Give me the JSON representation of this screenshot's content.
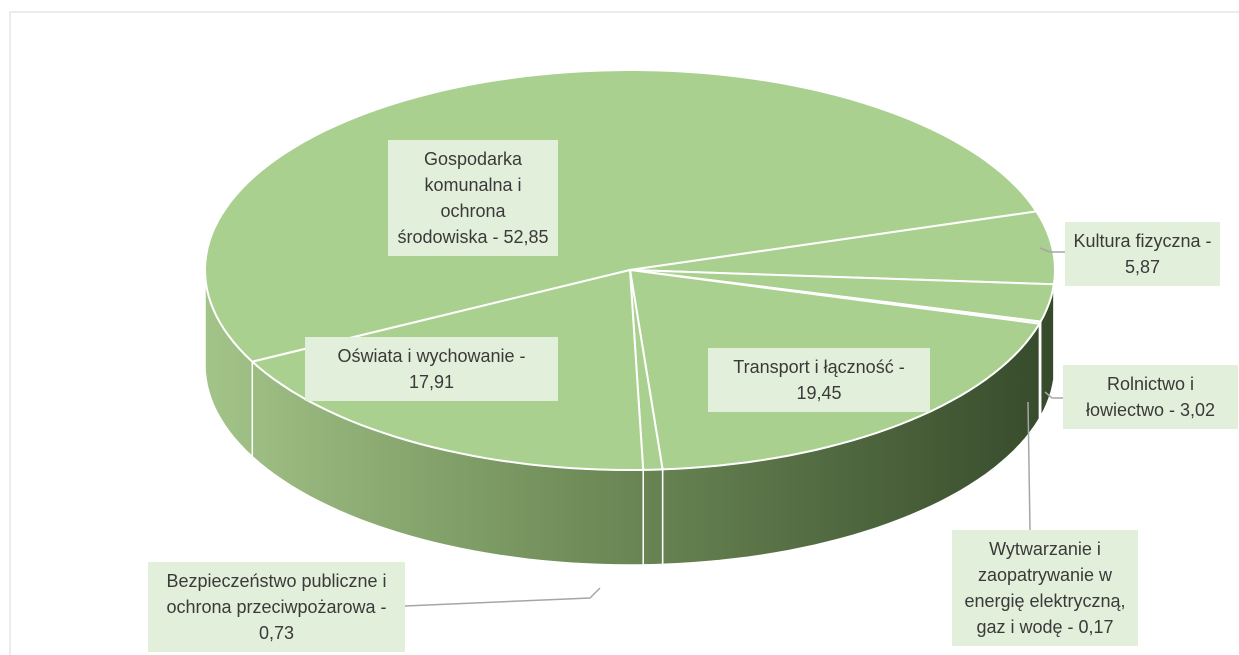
{
  "chart_data": {
    "type": "pie",
    "values": [
      52.85,
      5.87,
      3.02,
      0.17,
      19.45,
      0.73,
      17.91
    ],
    "value_labels": [
      "Gospodarka komunalna i ochrona środowiska - 52,85",
      "Kultura fizyczna - 5,87",
      "Rolnictwo i łowiectwo - 3,02",
      "Wytwarzanie i zaopatrywanie w energię elektryczną, gaz i wodę - 0,17",
      "Transport i łączność - 19,45",
      "Bezpieczeństwo publiczne i ochrona przeciwpożarowa - 0,73",
      "Oświata i wychowanie - 17,91"
    ],
    "color": "#a9d08e"
  }
}
